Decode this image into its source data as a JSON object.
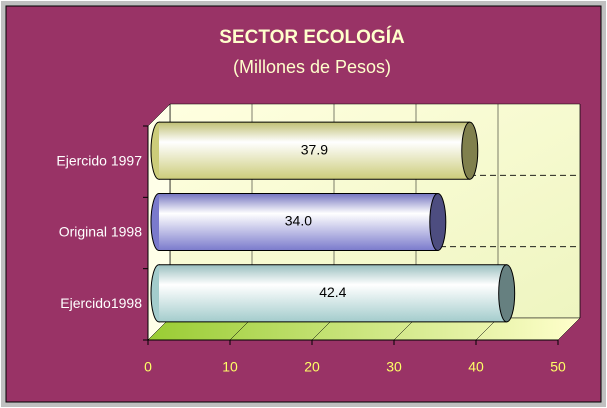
{
  "chart_data": {
    "type": "bar",
    "orientation": "horizontal",
    "title": "SECTOR ECOLOGÍA",
    "subtitle": "(Millones de Pesos)",
    "categories": [
      "Ejercido 1997",
      "Original 1998",
      "Ejercido1998"
    ],
    "values": [
      37.9,
      34.0,
      42.4
    ],
    "value_labels": [
      "37.9",
      "34.0",
      "42.4"
    ],
    "colors": [
      "#ffff99",
      "#9999ff",
      "#ccffff"
    ],
    "xlim": [
      0,
      50
    ],
    "xticks": [
      0,
      10,
      20,
      30,
      40,
      50
    ],
    "grid": true
  }
}
